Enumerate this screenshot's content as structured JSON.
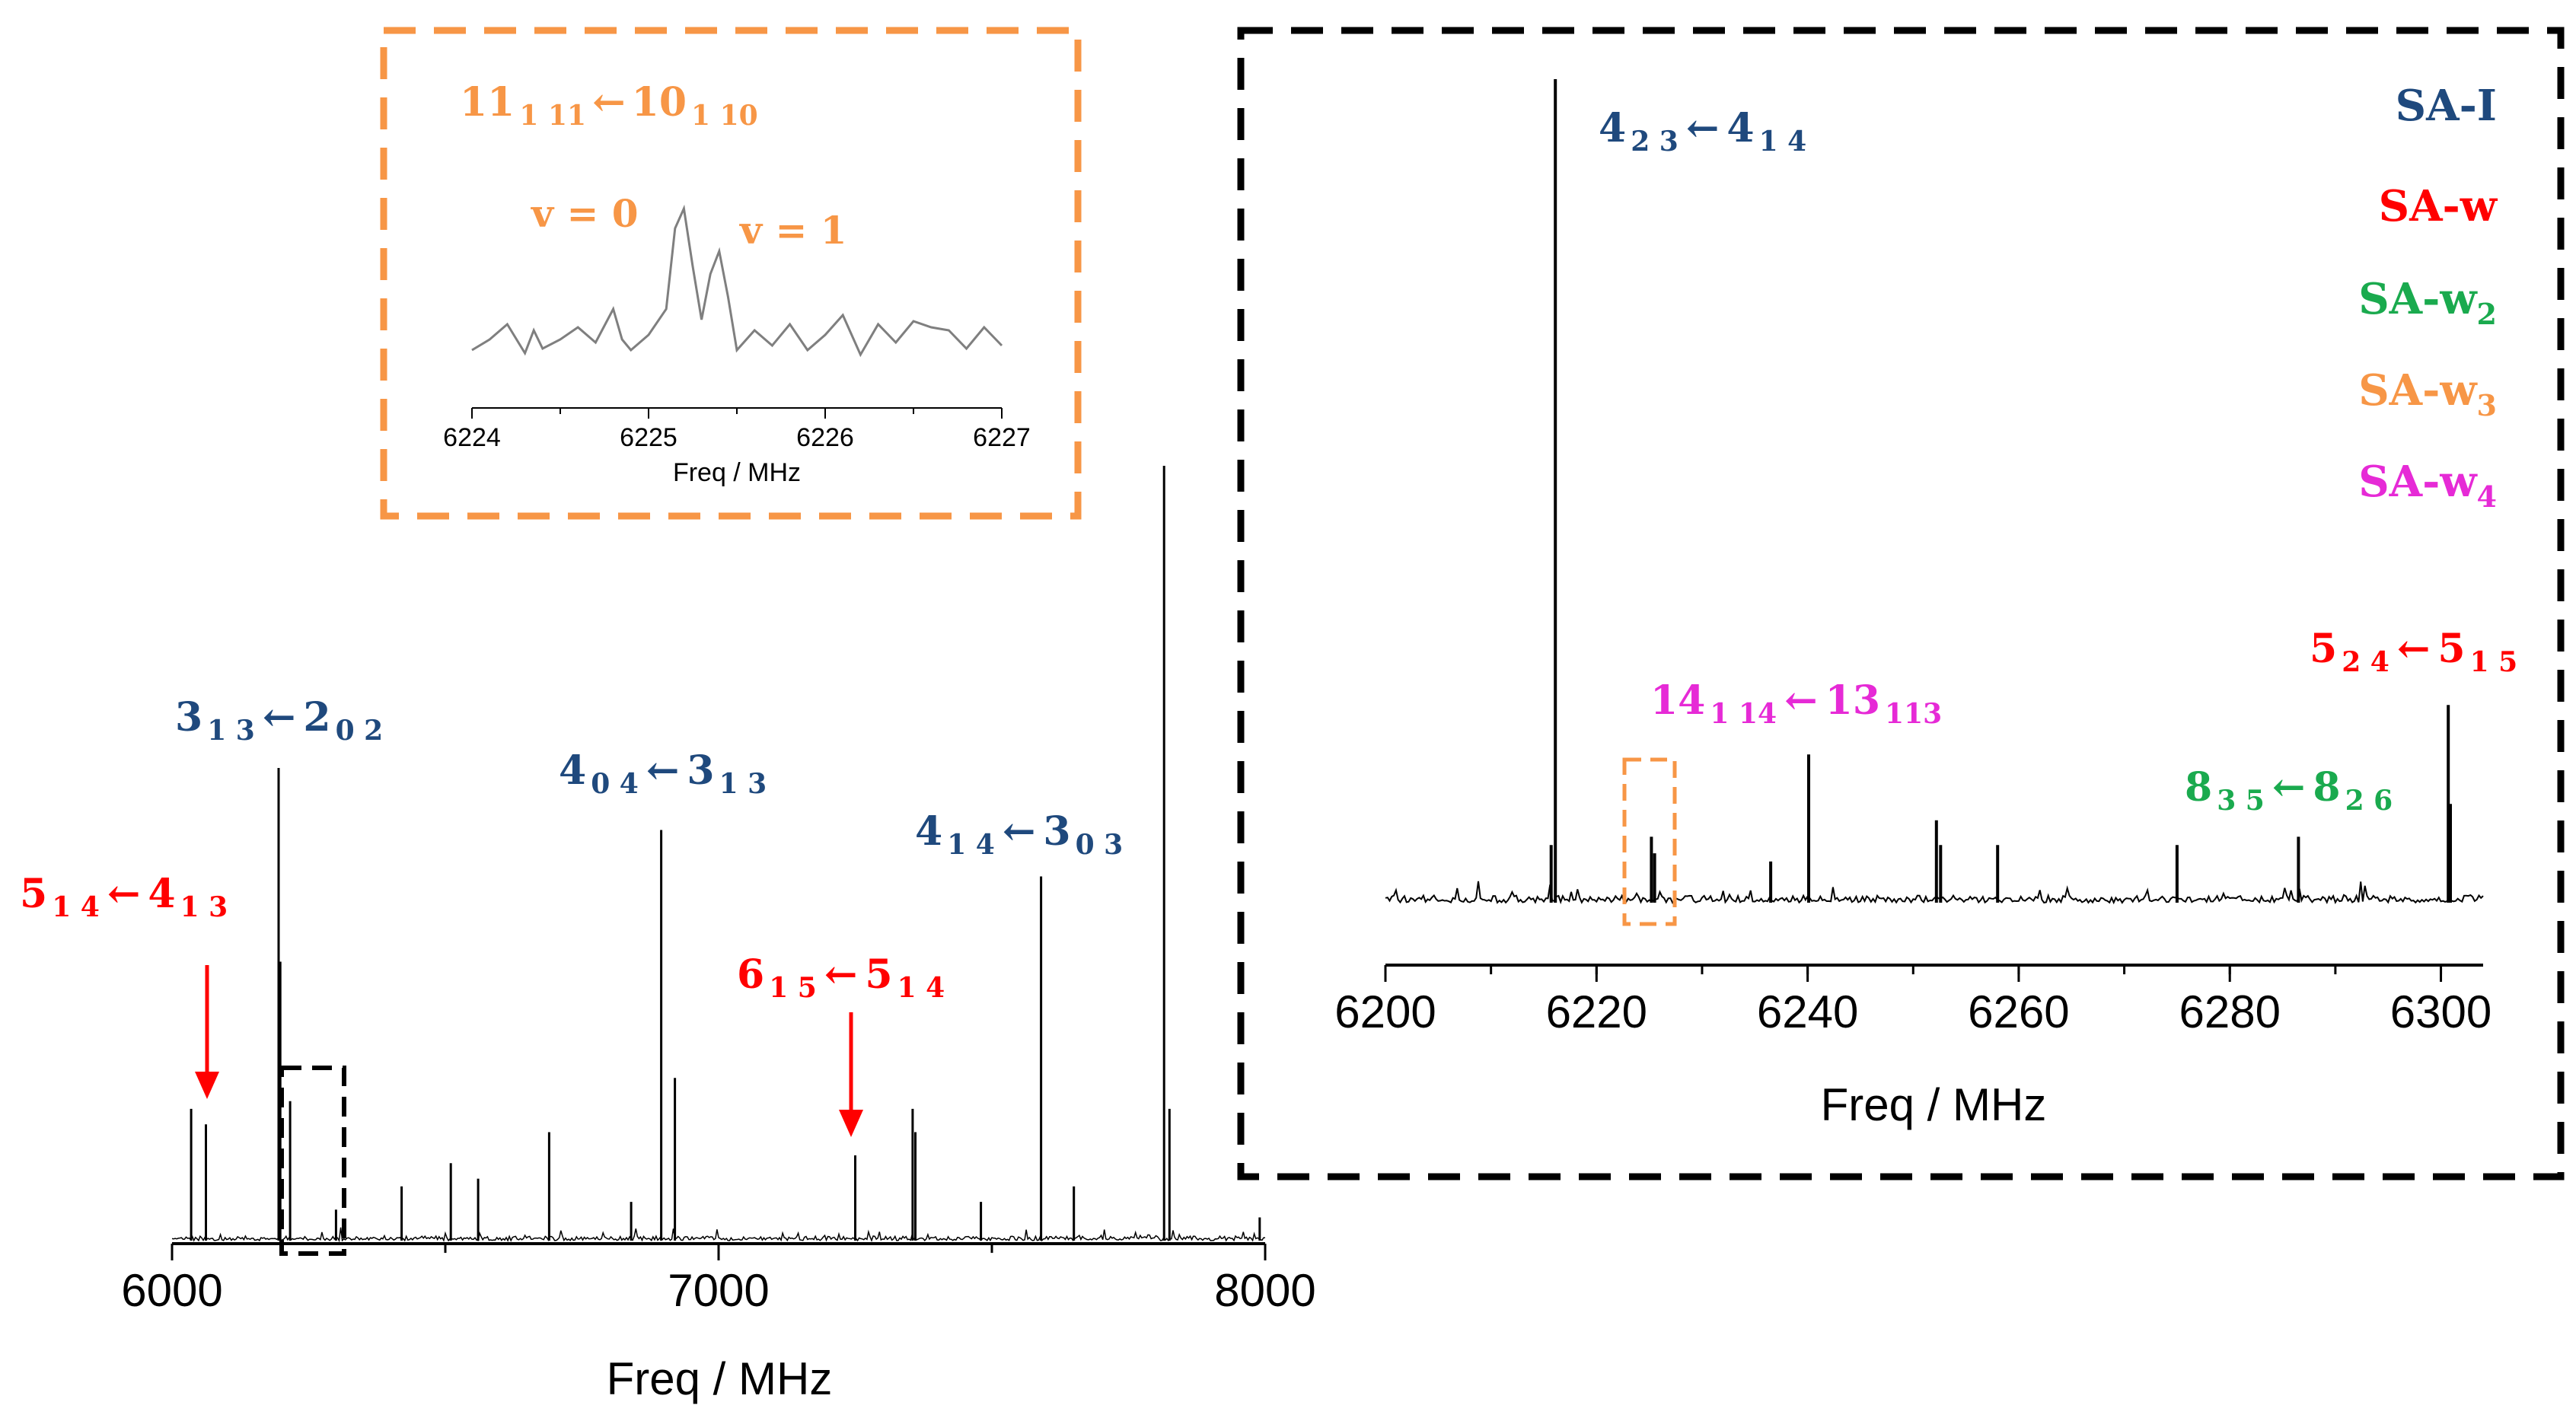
{
  "colors": {
    "sa_i": "#1f497d",
    "sa_w": "#ff0000",
    "sa_w2": "#1aaa4e",
    "sa_w3": "#f79646",
    "sa_w4": "#e62ad6",
    "trace": "#000000",
    "inset_trace": "#7f7f7f"
  },
  "chart_data": [
    {
      "id": "main",
      "type": "line",
      "title": "",
      "xlabel": "Freq / MHz",
      "ylabel": "",
      "xlim": [
        6000,
        8000
      ],
      "ylim": [
        0,
        1.0
      ],
      "xticks": [
        "6000",
        "7000",
        "8000"
      ],
      "peaks": [
        {
          "x": 6035,
          "y": 0.17
        },
        {
          "x": 6062,
          "y": 0.15
        },
        {
          "x": 6195,
          "y": 0.61
        },
        {
          "x": 6198,
          "y": 0.36
        },
        {
          "x": 6216,
          "y": 0.18
        },
        {
          "x": 6300,
          "y": 0.04
        },
        {
          "x": 6420,
          "y": 0.07
        },
        {
          "x": 6510,
          "y": 0.1
        },
        {
          "x": 6560,
          "y": 0.08
        },
        {
          "x": 6690,
          "y": 0.14
        },
        {
          "x": 6840,
          "y": 0.05
        },
        {
          "x": 6895,
          "y": 0.53
        },
        {
          "x": 6920,
          "y": 0.21
        },
        {
          "x": 7250,
          "y": 0.11
        },
        {
          "x": 7355,
          "y": 0.17
        },
        {
          "x": 7360,
          "y": 0.14
        },
        {
          "x": 7480,
          "y": 0.05
        },
        {
          "x": 7590,
          "y": 0.47
        },
        {
          "x": 7650,
          "y": 0.07
        },
        {
          "x": 7815,
          "y": 1.0
        },
        {
          "x": 7825,
          "y": 0.17
        },
        {
          "x": 7990,
          "y": 0.03
        }
      ],
      "annotations": [
        {
          "label_a": "3",
          "sub_a": "1 3",
          "label_b": "2",
          "sub_b": "0 2",
          "species": "SA-I"
        },
        {
          "label_a": "4",
          "sub_a": "0 4",
          "label_b": "3",
          "sub_b": "1 3",
          "species": "SA-I"
        },
        {
          "label_a": "4",
          "sub_a": "1 4",
          "label_b": "3",
          "sub_b": "0 3",
          "species": "SA-I"
        },
        {
          "label_a": "5",
          "sub_a": "1 4",
          "label_b": "4",
          "sub_b": "1 3",
          "species": "SA-w"
        },
        {
          "label_a": "6",
          "sub_a": "1 5",
          "label_b": "5",
          "sub_b": "1 4",
          "species": "SA-w"
        }
      ]
    },
    {
      "id": "zoom",
      "type": "line",
      "title": "",
      "xlabel": "Freq / MHz",
      "ylabel": "",
      "xlim": [
        6200,
        6304
      ],
      "ylim": [
        0,
        1.0
      ],
      "xticks": [
        "6200",
        "6220",
        "6240",
        "6260",
        "6280",
        "6300"
      ],
      "peaks": [
        {
          "x": 6216.1,
          "y": 1.0
        },
        {
          "x": 6215.7,
          "y": 0.07
        },
        {
          "x": 6225.2,
          "y": 0.08
        },
        {
          "x": 6225.5,
          "y": 0.06
        },
        {
          "x": 6236.5,
          "y": 0.05
        },
        {
          "x": 6240.1,
          "y": 0.18
        },
        {
          "x": 6252.2,
          "y": 0.1
        },
        {
          "x": 6252.6,
          "y": 0.07
        },
        {
          "x": 6258,
          "y": 0.07
        },
        {
          "x": 6275,
          "y": 0.07
        },
        {
          "x": 6286.5,
          "y": 0.08
        },
        {
          "x": 6300.7,
          "y": 0.24
        },
        {
          "x": 6300.9,
          "y": 0.12
        }
      ],
      "annotations": [
        {
          "label_a": "4",
          "sub_a": "2 3",
          "label_b": "4",
          "sub_b": "1 4",
          "species": "SA-I"
        },
        {
          "label_a": "14",
          "sub_a": "1 14",
          "label_b": "13",
          "sub_b": "113",
          "species": "SA-w4"
        },
        {
          "label_a": "8",
          "sub_a": "3 5",
          "label_b": "8",
          "sub_b": "2 6",
          "species": "SA-w2"
        },
        {
          "label_a": "5",
          "sub_a": "2 4",
          "label_b": "5",
          "sub_b": "1 5",
          "species": "SA-w"
        }
      ],
      "legend": [
        {
          "base": "SA-I",
          "sub": "",
          "color_key": "sa_i"
        },
        {
          "base": "SA-w",
          "sub": "",
          "color_key": "sa_w"
        },
        {
          "base": "SA-w",
          "sub": "2",
          "color_key": "sa_w2"
        },
        {
          "base": "SA-w",
          "sub": "3",
          "color_key": "sa_w3"
        },
        {
          "base": "SA-w",
          "sub": "4",
          "color_key": "sa_w4"
        }
      ]
    },
    {
      "id": "inset",
      "type": "line",
      "title": "",
      "xlabel": "Freq / MHz",
      "ylabel": "",
      "xlim": [
        6224,
        6227
      ],
      "ylim": [
        -0.1,
        1.0
      ],
      "xticks": [
        "6224",
        "6225",
        "6226",
        "6227"
      ],
      "x": [
        6224.0,
        6224.1,
        6224.2,
        6224.3,
        6224.35,
        6224.4,
        6224.5,
        6224.6,
        6224.7,
        6224.8,
        6224.85,
        6224.9,
        6225.0,
        6225.1,
        6225.15,
        6225.2,
        6225.25,
        6225.3,
        6225.35,
        6225.4,
        6225.45,
        6225.5,
        6225.6,
        6225.7,
        6225.8,
        6225.9,
        6226.0,
        6226.1,
        6226.2,
        6226.3,
        6226.4,
        6226.5,
        6226.6,
        6226.7,
        6226.8,
        6226.9,
        6227.0
      ],
      "y": [
        0.05,
        0.12,
        0.22,
        0.03,
        0.18,
        0.06,
        0.12,
        0.2,
        0.1,
        0.32,
        0.12,
        0.05,
        0.15,
        0.32,
        0.85,
        0.98,
        0.6,
        0.25,
        0.55,
        0.7,
        0.4,
        0.05,
        0.18,
        0.08,
        0.22,
        0.05,
        0.15,
        0.28,
        0.02,
        0.22,
        0.1,
        0.24,
        0.2,
        0.18,
        0.06,
        0.2,
        0.08
      ],
      "annotation": {
        "label_a": "11",
        "sub_a": "1 11",
        "label_b": "10",
        "sub_b": "1 10"
      },
      "peak_labels": [
        "v = 0",
        "v = 1"
      ]
    }
  ]
}
